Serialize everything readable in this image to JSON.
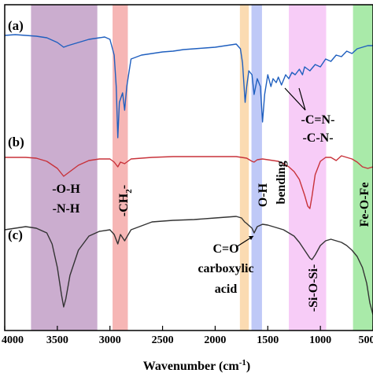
{
  "chart_data": {
    "type": "line",
    "xlabel": "Wavenumber (cm",
    "xlabel_sup": "-1",
    "xlabel_end": ")",
    "xlim": [
      4000,
      500
    ],
    "x_ticks": [
      "4000",
      "3500",
      "3000",
      "2500",
      "2000",
      "1500",
      "1000",
      "500"
    ],
    "x_tick_values": [
      4000,
      3500,
      3000,
      2500,
      2000,
      1500,
      1000,
      500
    ],
    "grid": false,
    "series": [
      {
        "name": "(a)",
        "color": "#1f5fbf",
        "points": [
          [
            4000,
            45
          ],
          [
            3900,
            44
          ],
          [
            3800,
            45
          ],
          [
            3700,
            46
          ],
          [
            3600,
            48
          ],
          [
            3500,
            54
          ],
          [
            3440,
            60
          ],
          [
            3400,
            58
          ],
          [
            3300,
            54
          ],
          [
            3200,
            50
          ],
          [
            3100,
            48
          ],
          [
            3050,
            47
          ],
          [
            3000,
            50
          ],
          [
            2960,
            70
          ],
          [
            2940,
            110
          ],
          [
            2925,
            175
          ],
          [
            2910,
            130
          ],
          [
            2880,
            118
          ],
          [
            2860,
            140
          ],
          [
            2840,
            110
          ],
          [
            2800,
            75
          ],
          [
            2700,
            70
          ],
          [
            2600,
            68
          ],
          [
            2500,
            66
          ],
          [
            2400,
            65
          ],
          [
            2300,
            63
          ],
          [
            2200,
            62
          ],
          [
            2100,
            61
          ],
          [
            2000,
            60
          ],
          [
            1900,
            58
          ],
          [
            1800,
            56
          ],
          [
            1760,
            62
          ],
          [
            1740,
            80
          ],
          [
            1715,
            130
          ],
          [
            1700,
            110
          ],
          [
            1680,
            90
          ],
          [
            1650,
            95
          ],
          [
            1630,
            120
          ],
          [
            1600,
            100
          ],
          [
            1570,
            110
          ],
          [
            1550,
            155
          ],
          [
            1530,
            120
          ],
          [
            1500,
            95
          ],
          [
            1470,
            110
          ],
          [
            1450,
            100
          ],
          [
            1420,
            105
          ],
          [
            1400,
            98
          ],
          [
            1370,
            108
          ],
          [
            1330,
            95
          ],
          [
            1300,
            100
          ],
          [
            1270,
            92
          ],
          [
            1240,
            95
          ],
          [
            1200,
            88
          ],
          [
            1170,
            95
          ],
          [
            1150,
            85
          ],
          [
            1100,
            90
          ],
          [
            1050,
            82
          ],
          [
            1000,
            85
          ],
          [
            950,
            75
          ],
          [
            900,
            78
          ],
          [
            850,
            70
          ],
          [
            800,
            72
          ],
          [
            750,
            65
          ],
          [
            700,
            68
          ],
          [
            650,
            62
          ],
          [
            600,
            60
          ],
          [
            550,
            58
          ],
          [
            500,
            58
          ]
        ]
      },
      {
        "name": "(b)",
        "color": "#c8323a",
        "points": [
          [
            4000,
            200
          ],
          [
            3900,
            200
          ],
          [
            3800,
            200
          ],
          [
            3700,
            201
          ],
          [
            3600,
            205
          ],
          [
            3500,
            214
          ],
          [
            3440,
            224
          ],
          [
            3400,
            220
          ],
          [
            3300,
            210
          ],
          [
            3200,
            204
          ],
          [
            3100,
            202
          ],
          [
            3000,
            202
          ],
          [
            2960,
            206
          ],
          [
            2925,
            212
          ],
          [
            2900,
            206
          ],
          [
            2860,
            208
          ],
          [
            2800,
            202
          ],
          [
            2600,
            200
          ],
          [
            2400,
            199
          ],
          [
            2200,
            199
          ],
          [
            2000,
            199
          ],
          [
            1800,
            199
          ],
          [
            1750,
            200
          ],
          [
            1700,
            201
          ],
          [
            1650,
            205
          ],
          [
            1630,
            206
          ],
          [
            1600,
            203
          ],
          [
            1550,
            202
          ],
          [
            1500,
            203
          ],
          [
            1450,
            204
          ],
          [
            1400,
            205
          ],
          [
            1350,
            208
          ],
          [
            1300,
            212
          ],
          [
            1250,
            218
          ],
          [
            1200,
            228
          ],
          [
            1150,
            248
          ],
          [
            1120,
            262
          ],
          [
            1100,
            265
          ],
          [
            1080,
            250
          ],
          [
            1050,
            222
          ],
          [
            1000,
            205
          ],
          [
            950,
            200
          ],
          [
            900,
            200
          ],
          [
            850,
            204
          ],
          [
            800,
            198
          ],
          [
            750,
            200
          ],
          [
            700,
            202
          ],
          [
            650,
            206
          ],
          [
            600,
            212
          ],
          [
            550,
            214
          ],
          [
            500,
            212
          ]
        ]
      },
      {
        "name": "(c)",
        "color": "#333333",
        "points": [
          [
            4000,
            292
          ],
          [
            3900,
            290
          ],
          [
            3800,
            288
          ],
          [
            3700,
            290
          ],
          [
            3600,
            296
          ],
          [
            3550,
            310
          ],
          [
            3500,
            340
          ],
          [
            3460,
            375
          ],
          [
            3440,
            390
          ],
          [
            3420,
            380
          ],
          [
            3380,
            350
          ],
          [
            3300,
            318
          ],
          [
            3200,
            300
          ],
          [
            3100,
            294
          ],
          [
            3000,
            292
          ],
          [
            2960,
            298
          ],
          [
            2925,
            310
          ],
          [
            2900,
            298
          ],
          [
            2860,
            306
          ],
          [
            2800,
            292
          ],
          [
            2600,
            282
          ],
          [
            2400,
            280
          ],
          [
            2200,
            279
          ],
          [
            2000,
            277
          ],
          [
            1800,
            275
          ],
          [
            1750,
            277
          ],
          [
            1720,
            282
          ],
          [
            1700,
            284
          ],
          [
            1650,
            290
          ],
          [
            1630,
            296
          ],
          [
            1600,
            288
          ],
          [
            1550,
            285
          ],
          [
            1500,
            286
          ],
          [
            1450,
            288
          ],
          [
            1400,
            290
          ],
          [
            1350,
            292
          ],
          [
            1300,
            296
          ],
          [
            1250,
            300
          ],
          [
            1200,
            308
          ],
          [
            1150,
            318
          ],
          [
            1100,
            328
          ],
          [
            1080,
            330
          ],
          [
            1050,
            324
          ],
          [
            1000,
            312
          ],
          [
            950,
            306
          ],
          [
            900,
            304
          ],
          [
            850,
            306
          ],
          [
            800,
            308
          ],
          [
            750,
            312
          ],
          [
            700,
            318
          ],
          [
            650,
            326
          ],
          [
            600,
            340
          ],
          [
            560,
            360
          ],
          [
            530,
            385
          ],
          [
            500,
            400
          ]
        ]
      }
    ],
    "bands": [
      {
        "from": 3750,
        "to": 3120,
        "color": "#a06aa8",
        "label_lines": [
          "-O-H",
          "-N-H"
        ]
      },
      {
        "from": 2975,
        "to": 2830,
        "color": "#ee7a78",
        "label_main": "-CH",
        "label_sub": "2",
        "label_end": "-"
      },
      {
        "from": 1765,
        "to": 1680,
        "color": "#f7bd72"
      },
      {
        "from": 1655,
        "to": 1555,
        "color": "#8a9cf0",
        "label_rotated": "O-H",
        "label_rotated_2": "bending"
      },
      {
        "from": 1300,
        "to": 945,
        "color": "#f0a3f0",
        "label_rotated": "-Si-O-Si-"
      },
      {
        "from": 690,
        "to": 500,
        "color": "#62d862",
        "label_rotated": "Fe-O-Fe"
      }
    ],
    "annotations": {
      "co_line1": "C=O",
      "co_line2": "carboxylic",
      "co_line3": "acid",
      "cn_line1": "-C=N-",
      "cn_line2": "-C-N-"
    },
    "panel_labels": [
      "(a)",
      "(b)",
      "(c)"
    ]
  }
}
